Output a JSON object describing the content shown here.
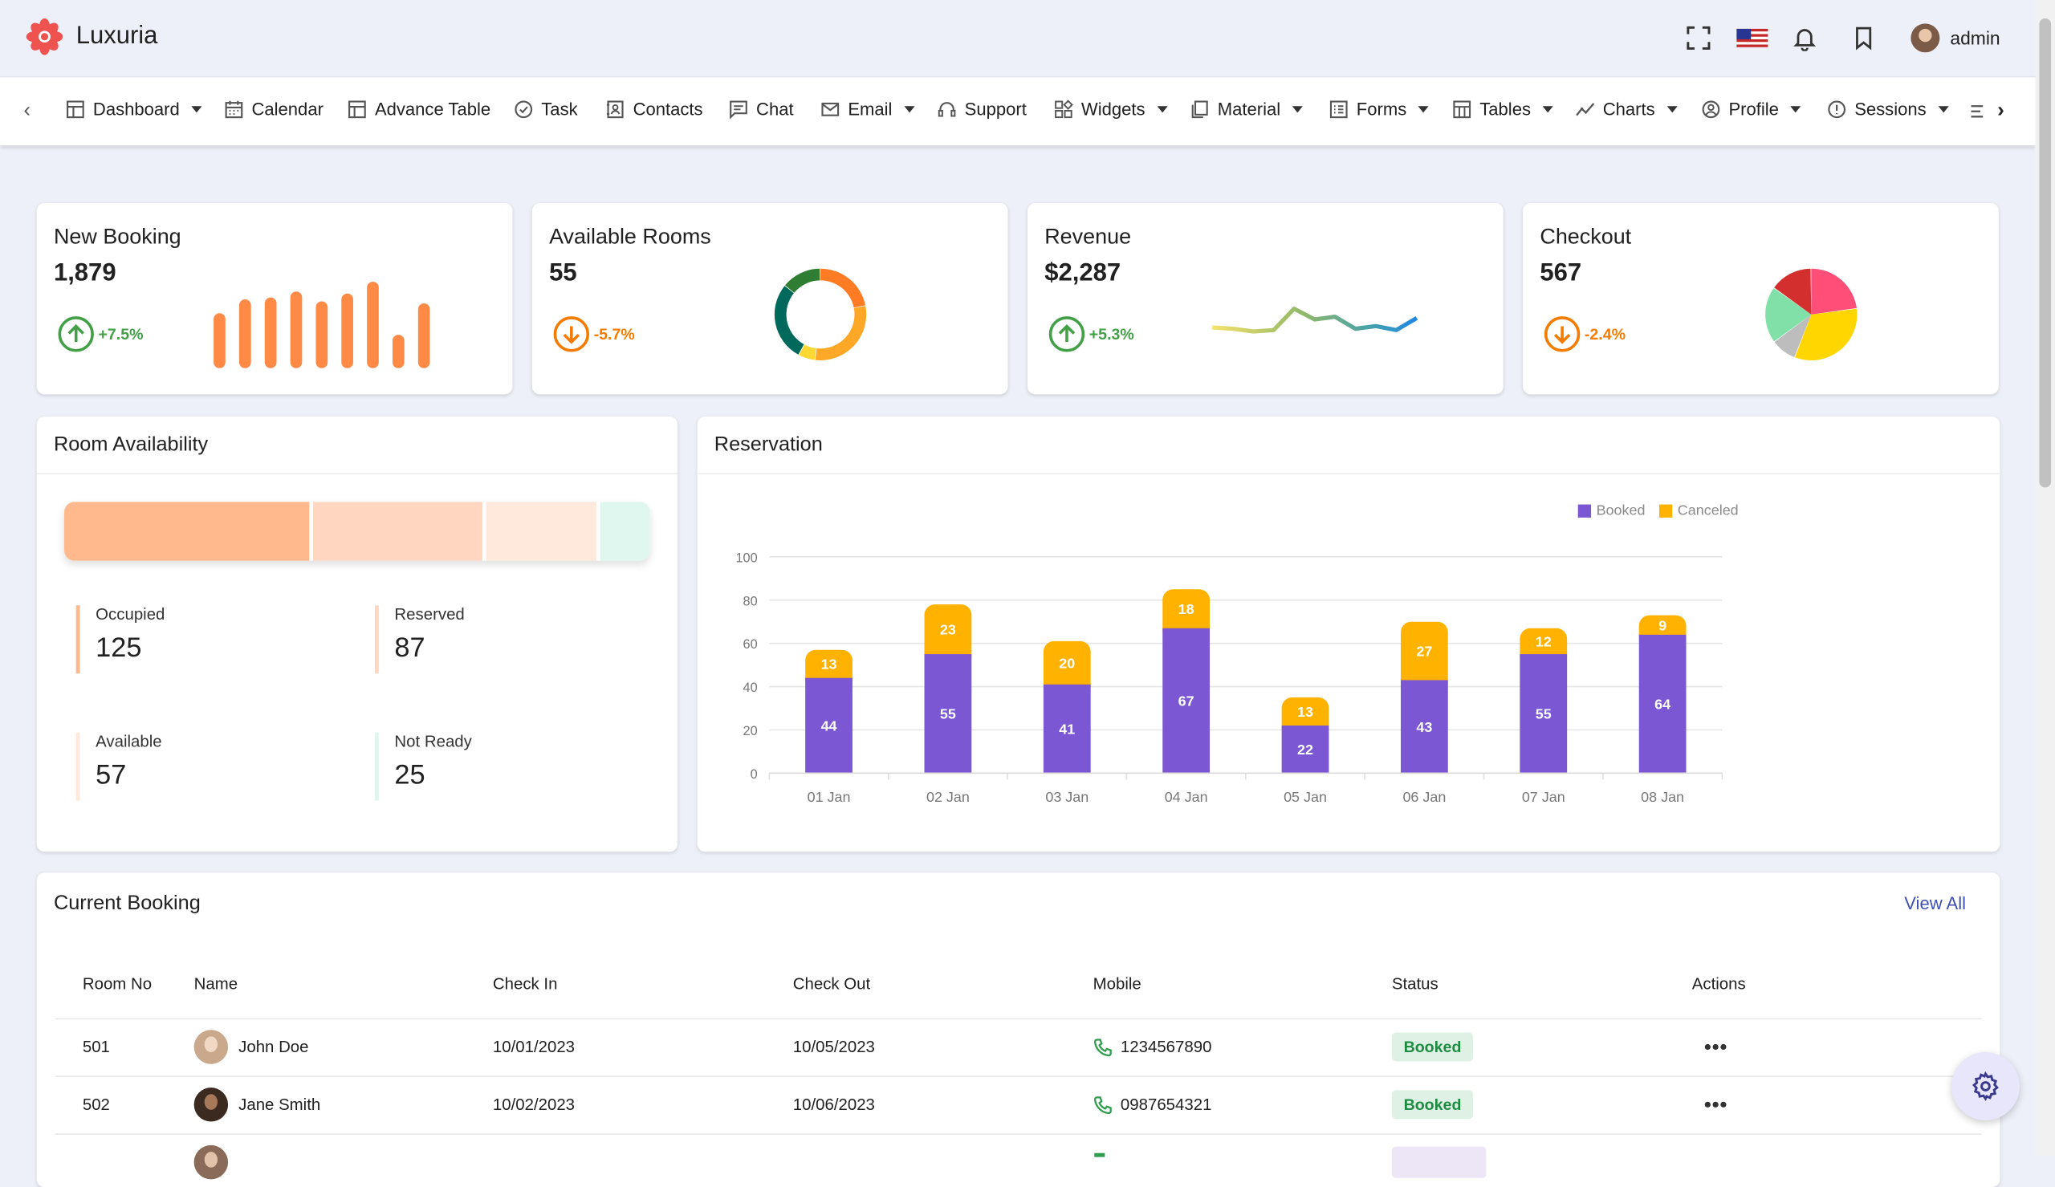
{
  "app": {
    "name": "Luxuria",
    "user": "admin"
  },
  "nav": {
    "items": [
      {
        "label": "Dashboard",
        "icon": "dashboard-icon",
        "dropdown": true
      },
      {
        "label": "Calendar",
        "icon": "calendar-icon",
        "dropdown": false
      },
      {
        "label": "Advance Table",
        "icon": "table-icon",
        "dropdown": false
      },
      {
        "label": "Task",
        "icon": "task-icon",
        "dropdown": false
      },
      {
        "label": "Contacts",
        "icon": "contacts-icon",
        "dropdown": false
      },
      {
        "label": "Chat",
        "icon": "chat-icon",
        "dropdown": false
      },
      {
        "label": "Email",
        "icon": "email-icon",
        "dropdown": true
      },
      {
        "label": "Support",
        "icon": "headset-icon",
        "dropdown": false
      },
      {
        "label": "Widgets",
        "icon": "widgets-icon",
        "dropdown": true
      },
      {
        "label": "Material",
        "icon": "material-icon",
        "dropdown": true
      },
      {
        "label": "Forms",
        "icon": "forms-icon",
        "dropdown": true
      },
      {
        "label": "Tables",
        "icon": "tables-icon",
        "dropdown": true
      },
      {
        "label": "Charts",
        "icon": "charts-icon",
        "dropdown": true
      },
      {
        "label": "Profile",
        "icon": "profile-icon",
        "dropdown": true
      },
      {
        "label": "Sessions",
        "icon": "sessions-icon",
        "dropdown": true
      }
    ]
  },
  "stats": [
    {
      "title": "New Booking",
      "value": "1,879",
      "change": "+7.5%",
      "trend": "up",
      "color": "#43a047"
    },
    {
      "title": "Available Rooms",
      "value": "55",
      "change": "-5.7%",
      "trend": "down",
      "color": "#f57c00"
    },
    {
      "title": "Revenue",
      "value": "$2,287",
      "change": "+5.3%",
      "trend": "up",
      "color": "#43a047"
    },
    {
      "title": "Checkout",
      "value": "567",
      "change": "-2.4%",
      "trend": "down",
      "color": "#f57c00"
    }
  ],
  "mini_charts": {
    "booking_bars": [
      56,
      70,
      72,
      78,
      68,
      76,
      88,
      34,
      66
    ],
    "rooms_donut": [
      {
        "value": 22,
        "color": "#ff7b24"
      },
      {
        "value": 30,
        "color": "#ffa726"
      },
      {
        "value": 6,
        "color": "#fdd835"
      },
      {
        "value": 28,
        "color": "#00695c"
      },
      {
        "value": 14,
        "color": "#2e7d32"
      }
    ],
    "revenue_line": [
      44,
      45,
      47,
      46,
      30,
      38,
      36,
      45,
      43,
      46,
      37
    ],
    "checkout_pie": [
      {
        "value": 23,
        "color": "#ff4f79"
      },
      {
        "value": 33,
        "color": "#ffd600"
      },
      {
        "value": 9,
        "color": "#bdbdbd"
      },
      {
        "value": 20,
        "color": "#80e0a7"
      },
      {
        "value": 15,
        "color": "#d32f2f"
      }
    ]
  },
  "room_availability": {
    "title": "Room Availability",
    "segments": [
      {
        "label": "Occupied",
        "value": 125,
        "color": "#ffb98c"
      },
      {
        "label": "Reserved",
        "value": 87,
        "color": "#ffd6c0"
      },
      {
        "label": "Available",
        "value": 57,
        "color": "#ffe8dc"
      },
      {
        "label": "Not Ready",
        "value": 25,
        "color": "#dff7ef"
      }
    ],
    "indicator_colors": [
      "#ffb98c",
      "#ffd6c0",
      "#ffe8dc",
      "#dff7ef"
    ]
  },
  "reservation": {
    "title": "Reservation"
  },
  "chart_data": {
    "type": "bar",
    "stacked": true,
    "categories": [
      "01 Jan",
      "02 Jan",
      "03 Jan",
      "04 Jan",
      "05 Jan",
      "06 Jan",
      "07 Jan",
      "08 Jan"
    ],
    "series": [
      {
        "name": "Booked",
        "values": [
          44,
          55,
          41,
          67,
          22,
          43,
          55,
          64
        ],
        "color": "#7b57d3"
      },
      {
        "name": "Canceled",
        "values": [
          13,
          23,
          20,
          18,
          13,
          27,
          12,
          9
        ],
        "color": "#ffb300"
      }
    ],
    "yticks": [
      "0",
      "20",
      "40",
      "60",
      "80",
      "100"
    ],
    "ylim": [
      0,
      100
    ],
    "grid": true,
    "legend": "top-right"
  },
  "current_booking": {
    "title": "Current Booking",
    "view_all": "View All",
    "columns": [
      "Room No",
      "Name",
      "Check In",
      "Check Out",
      "Mobile",
      "Status",
      "Actions"
    ],
    "rows": [
      {
        "room": "501",
        "name": "John Doe",
        "check_in": "10/01/2023",
        "check_out": "10/05/2023",
        "mobile": "1234567890",
        "status": "Booked"
      },
      {
        "room": "502",
        "name": "Jane Smith",
        "check_in": "10/02/2023",
        "check_out": "10/06/2023",
        "mobile": "0987654321",
        "status": "Booked"
      }
    ]
  }
}
